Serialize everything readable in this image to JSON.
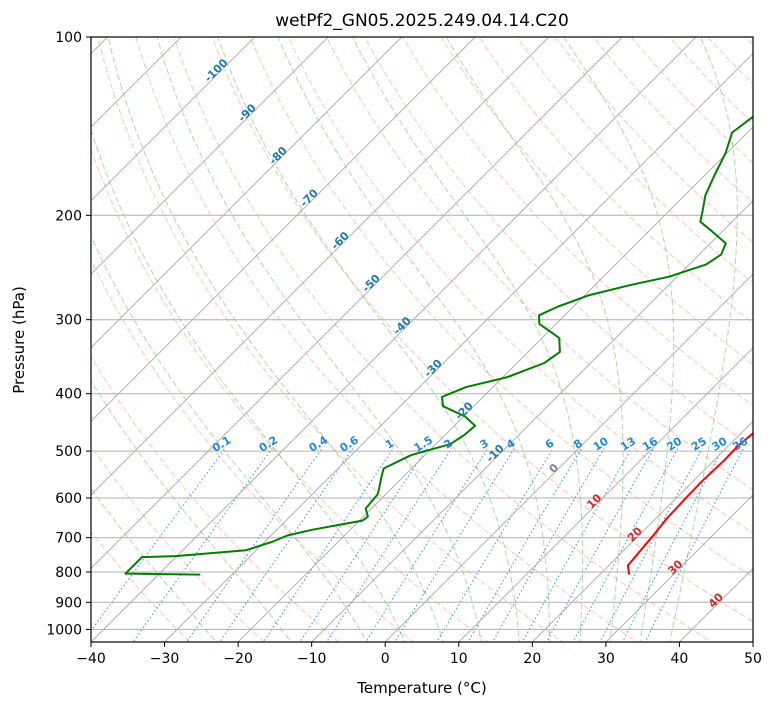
{
  "chart_data": {
    "type": "line",
    "title": "wetPf2_GN05.2025.249.04.14.C20",
    "xlabel": "Temperature (°C)",
    "ylabel": "Pressure (hPa)",
    "xlim": [
      -40,
      50
    ],
    "ylim": [
      1050,
      100
    ],
    "y_scale": "log",
    "grid": true,
    "x_ticks": [
      -40,
      -30,
      -20,
      -10,
      0,
      10,
      20,
      30,
      40,
      50
    ],
    "y_ticks": [
      100,
      200,
      300,
      400,
      500,
      600,
      700,
      800,
      900,
      1000
    ],
    "isotherm_labels": [
      "-100",
      "-90",
      "-80",
      "-70",
      "-60",
      "-50",
      "-40",
      "-30",
      "-20",
      "-10",
      "0",
      "10",
      "20",
      "30",
      "40"
    ],
    "mixing_ratio_labels": [
      "0.1",
      "0.2",
      "0.4",
      "0.6",
      "1",
      "1.5",
      "2",
      "3",
      "4",
      "6",
      "8",
      "10",
      "13",
      "16",
      "20",
      "25",
      "30",
      "36"
    ],
    "mixing_ratio_values": [
      0.1,
      0.2,
      0.4,
      0.6,
      1,
      1.5,
      2,
      3,
      4,
      6,
      8,
      10,
      13,
      16,
      20,
      25,
      30,
      36
    ],
    "colors": {
      "temperature": "#ff0000",
      "dewpoint": "#008000",
      "dry_adiabat": "#ff7f50",
      "moist_adiabat": "#2ca02c",
      "mixing_ratio": "#1e88e5",
      "isotherm": "#808080",
      "label_cold": "#1f77b4",
      "label_zero": "#808080",
      "label_warm": "#d62728"
    },
    "series": [
      {
        "key": "temperature",
        "points": [
          [
            24.0,
            808
          ],
          [
            22.6,
            780
          ],
          [
            22.0,
            700
          ],
          [
            21.5,
            650
          ],
          [
            21.3,
            600
          ],
          [
            21.2,
            560
          ],
          [
            21.4,
            520
          ],
          [
            21.3,
            490
          ],
          [
            21.8,
            455
          ],
          [
            20.8,
            440
          ],
          [
            19.3,
            420
          ],
          [
            17.2,
            400
          ],
          [
            15.4,
            380
          ],
          [
            13.7,
            350
          ],
          [
            12.3,
            320
          ],
          [
            10.8,
            290
          ],
          [
            8.3,
            270
          ],
          [
            5.2,
            250
          ],
          [
            2.3,
            230
          ],
          [
            -0.2,
            210
          ],
          [
            -2.1,
            195
          ],
          [
            -4.4,
            180
          ],
          [
            -6.9,
            165
          ],
          [
            -9.4,
            150
          ],
          [
            -11.7,
            140
          ],
          [
            -13.3,
            130
          ],
          [
            -15.4,
            122
          ],
          [
            -17.9,
            117
          ],
          [
            -19.0,
            112
          ],
          [
            -17.2,
            108
          ],
          [
            -15.0,
            104
          ],
          [
            -14.0,
            100
          ]
        ]
      },
      {
        "key": "dewpoint",
        "points": [
          [
            -34.3,
            808
          ],
          [
            -44.6,
            805
          ],
          [
            -44.6,
            755
          ],
          [
            -40.2,
            752
          ],
          [
            -31.4,
            735
          ],
          [
            -30.9,
            730
          ],
          [
            -29.5,
            716
          ],
          [
            -29.0,
            712
          ],
          [
            -27.8,
            694
          ],
          [
            -25.2,
            679
          ],
          [
            -22.0,
            665
          ],
          [
            -19.6,
            655
          ],
          [
            -19.4,
            645
          ],
          [
            -20.8,
            625
          ],
          [
            -21.1,
            592
          ],
          [
            -21.7,
            578
          ],
          [
            -22.7,
            558
          ],
          [
            -23.8,
            535
          ],
          [
            -21.9,
            508
          ],
          [
            -20.5,
            500
          ],
          [
            -18.1,
            487
          ],
          [
            -17.4,
            470
          ],
          [
            -17.2,
            453
          ],
          [
            -19.8,
            437
          ],
          [
            -24.2,
            420
          ],
          [
            -25.6,
            405
          ],
          [
            -23.7,
            390
          ],
          [
            -19.4,
            375
          ],
          [
            -16.3,
            355
          ],
          [
            -15.7,
            340
          ],
          [
            -17.7,
            322
          ],
          [
            -22.3,
            305
          ],
          [
            -23.5,
            295
          ],
          [
            -22.1,
            285
          ],
          [
            -19.5,
            273
          ],
          [
            -15.1,
            262
          ],
          [
            -11.1,
            254
          ],
          [
            -7.7,
            242
          ],
          [
            -7.0,
            233
          ],
          [
            -7.9,
            223
          ],
          [
            -11.7,
            212
          ],
          [
            -14.3,
            205
          ],
          [
            -15.4,
            197
          ],
          [
            -17.2,
            185
          ],
          [
            -18.6,
            172
          ],
          [
            -20.2,
            157
          ],
          [
            -22.1,
            145
          ],
          [
            -21.3,
            135
          ],
          [
            -21.7,
            126
          ],
          [
            -21.9,
            117
          ],
          [
            -20.7,
            110
          ],
          [
            -18.3,
            106
          ],
          [
            -16.2,
            103
          ],
          [
            -14.8,
            100
          ]
        ]
      }
    ]
  }
}
